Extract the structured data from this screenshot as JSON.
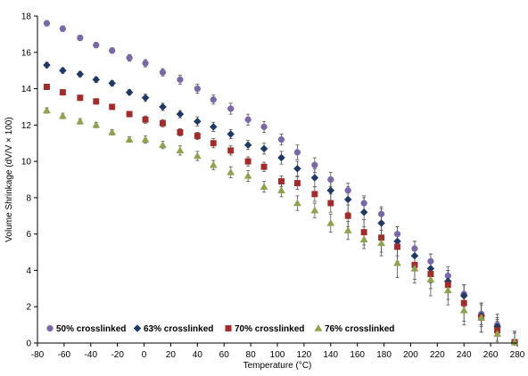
{
  "chart_data": {
    "type": "scatter",
    "title": "",
    "xlabel": "Temperature (°C)",
    "ylabel": "Volume Shrinkage (dV/V × 100)",
    "xlim": [
      -80,
      280
    ],
    "ylim": [
      0,
      18
    ],
    "x_ticks": [
      -80,
      -60,
      -40,
      -20,
      0,
      20,
      40,
      60,
      80,
      100,
      120,
      140,
      160,
      180,
      200,
      220,
      240,
      260,
      280
    ],
    "y_ticks": [
      0,
      2,
      4,
      6,
      8,
      10,
      12,
      14,
      16,
      18
    ],
    "grid": false,
    "legend_position": "bottom",
    "error_bars": true,
    "series": [
      {
        "name": "50% crosslinked",
        "color": "#7b68a8",
        "marker": "circle",
        "x": [
          -73,
          -61,
          -48,
          -36,
          -24,
          -11,
          1,
          14,
          27,
          40,
          52,
          65,
          78,
          90,
          103,
          115,
          128,
          140,
          153,
          165,
          178,
          190,
          203,
          215,
          228,
          240,
          253,
          265,
          278
        ],
        "y": [
          17.6,
          17.3,
          16.8,
          16.4,
          16.1,
          15.7,
          15.4,
          14.9,
          14.5,
          14.0,
          13.4,
          12.9,
          12.3,
          11.9,
          11.2,
          10.5,
          9.8,
          9.0,
          8.4,
          7.7,
          7.1,
          6.0,
          5.2,
          4.5,
          3.7,
          2.7,
          1.6,
          1.0,
          0.05
        ],
        "err": [
          0.15,
          0.15,
          0.15,
          0.15,
          0.15,
          0.18,
          0.2,
          0.2,
          0.25,
          0.25,
          0.25,
          0.3,
          0.3,
          0.3,
          0.3,
          0.4,
          0.4,
          0.4,
          0.4,
          0.4,
          0.4,
          0.4,
          0.4,
          0.4,
          0.5,
          0.5,
          0.6,
          0.6,
          0.6
        ]
      },
      {
        "name": "63% crosslinked",
        "color": "#1f3864",
        "marker": "diamond",
        "x": [
          -73,
          -61,
          -48,
          -36,
          -24,
          -11,
          1,
          14,
          27,
          40,
          52,
          65,
          78,
          90,
          103,
          115,
          128,
          140,
          153,
          165,
          178,
          190,
          203,
          215,
          228,
          240,
          253,
          265,
          278
        ],
        "y": [
          15.3,
          15.0,
          14.8,
          14.5,
          14.3,
          13.8,
          13.5,
          13.0,
          12.6,
          12.2,
          11.9,
          11.5,
          10.9,
          10.7,
          10.2,
          9.6,
          9.1,
          8.4,
          7.9,
          7.2,
          6.6,
          5.6,
          4.8,
          4.1,
          3.4,
          2.6,
          1.5,
          0.9,
          0.05
        ],
        "err": [
          0.15,
          0.15,
          0.15,
          0.15,
          0.15,
          0.15,
          0.2,
          0.2,
          0.2,
          0.25,
          0.25,
          0.25,
          0.25,
          0.3,
          0.35,
          0.4,
          0.5,
          0.6,
          0.7,
          0.8,
          0.8,
          0.8,
          0.8,
          0.8,
          0.6,
          0.6,
          0.6,
          0.5,
          0.5
        ]
      },
      {
        "name": "70% crosslinked",
        "color": "#a52a2a",
        "marker": "square",
        "x": [
          -73,
          -61,
          -48,
          -36,
          -24,
          -11,
          1,
          14,
          27,
          40,
          52,
          65,
          78,
          90,
          103,
          115,
          128,
          140,
          153,
          165,
          178,
          190,
          203,
          215,
          228,
          240,
          253,
          265,
          278
        ],
        "y": [
          14.1,
          13.8,
          13.5,
          13.3,
          13.0,
          12.6,
          12.3,
          12.1,
          11.6,
          11.4,
          11.0,
          10.6,
          10.0,
          9.7,
          8.9,
          8.8,
          8.2,
          7.7,
          7.0,
          6.1,
          5.8,
          5.3,
          4.3,
          3.8,
          3.2,
          2.2,
          1.4,
          0.7,
          0.05
        ],
        "err": [
          0.15,
          0.15,
          0.15,
          0.15,
          0.15,
          0.15,
          0.2,
          0.2,
          0.2,
          0.2,
          0.25,
          0.25,
          0.25,
          0.25,
          0.3,
          0.35,
          0.4,
          0.5,
          0.6,
          0.7,
          0.8,
          0.8,
          0.8,
          0.8,
          0.8,
          1.0,
          0.8,
          0.6,
          0.5
        ]
      },
      {
        "name": "76% crosslinked",
        "color": "#8fa34c",
        "marker": "triangle",
        "x": [
          -73,
          -61,
          -48,
          -36,
          -24,
          -11,
          1,
          14,
          27,
          40,
          52,
          65,
          78,
          90,
          103,
          115,
          128,
          140,
          153,
          165,
          178,
          190,
          203,
          215,
          228,
          240,
          253,
          265,
          278
        ],
        "y": [
          12.8,
          12.5,
          12.2,
          12.0,
          11.6,
          11.2,
          11.2,
          10.9,
          10.6,
          10.3,
          9.8,
          9.4,
          9.2,
          8.6,
          8.4,
          7.7,
          7.3,
          6.6,
          6.2,
          5.7,
          5.5,
          4.4,
          4.1,
          3.5,
          2.9,
          1.8,
          1.4,
          0.5,
          0.05
        ],
        "err": [
          0.15,
          0.15,
          0.15,
          0.15,
          0.15,
          0.15,
          0.2,
          0.2,
          0.25,
          0.25,
          0.25,
          0.3,
          0.3,
          0.3,
          0.35,
          0.4,
          0.4,
          0.5,
          0.5,
          0.5,
          0.7,
          0.8,
          0.8,
          0.9,
          0.8,
          0.8,
          0.8,
          0.7,
          0.6
        ]
      }
    ]
  }
}
